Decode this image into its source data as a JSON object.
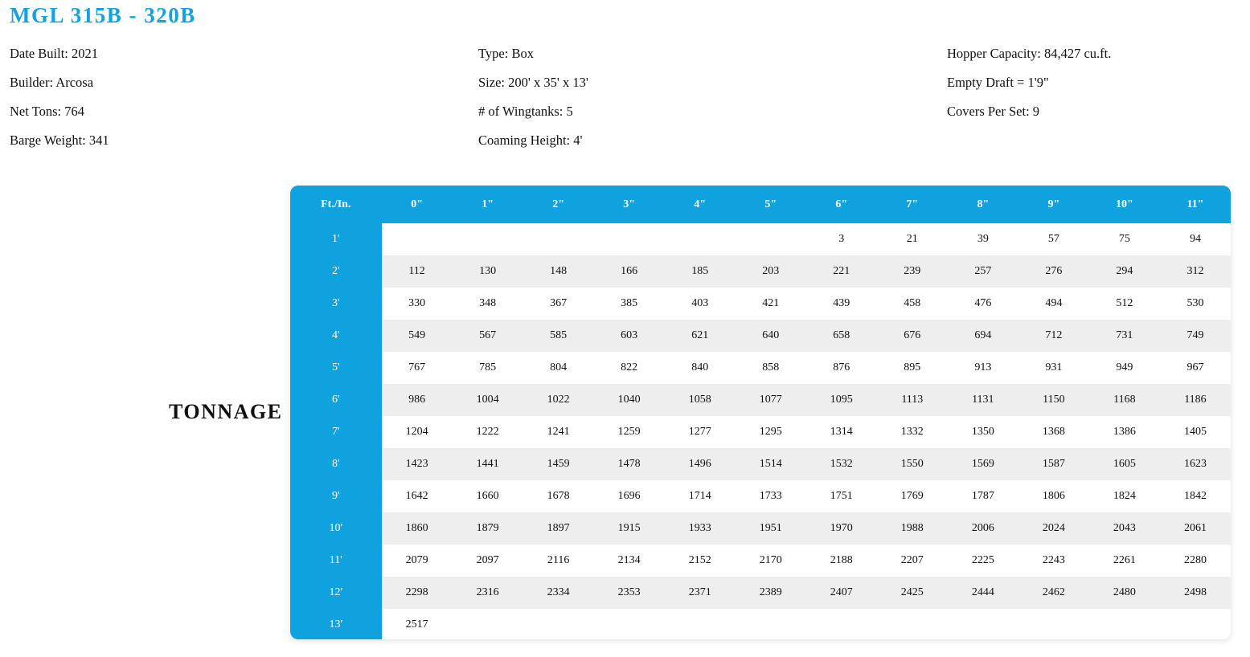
{
  "title": "MGL 315B - 320B",
  "info": {
    "col1": [
      "Date Built: 2021",
      "Builder: Arcosa",
      "Net Tons: 764",
      "Barge Weight: 341"
    ],
    "col2": [
      "Type: Box",
      "Size: 200' x 35' x 13'",
      "# of Wingtanks: 5",
      "Coaming Height: 4'"
    ],
    "col3": [
      "Hopper Capacity: 84,427 cu.ft.",
      "Empty Draft = 1'9\"",
      "Covers Per Set: 9"
    ]
  },
  "tonnage_label": "TONNAGE",
  "table": {
    "headers": [
      "Ft./In.",
      "0\"",
      "1\"",
      "2\"",
      "3\"",
      "4\"",
      "5\"",
      "6\"",
      "7\"",
      "8\"",
      "9\"",
      "10\"",
      "11\""
    ],
    "rows": [
      {
        "ft": "1'",
        "values": [
          "",
          "",
          "",
          "",
          "",
          "",
          "3",
          "21",
          "39",
          "57",
          "75",
          "94"
        ]
      },
      {
        "ft": "2'",
        "values": [
          "112",
          "130",
          "148",
          "166",
          "185",
          "203",
          "221",
          "239",
          "257",
          "276",
          "294",
          "312"
        ]
      },
      {
        "ft": "3'",
        "values": [
          "330",
          "348",
          "367",
          "385",
          "403",
          "421",
          "439",
          "458",
          "476",
          "494",
          "512",
          "530"
        ]
      },
      {
        "ft": "4'",
        "values": [
          "549",
          "567",
          "585",
          "603",
          "621",
          "640",
          "658",
          "676",
          "694",
          "712",
          "731",
          "749"
        ]
      },
      {
        "ft": "5'",
        "values": [
          "767",
          "785",
          "804",
          "822",
          "840",
          "858",
          "876",
          "895",
          "913",
          "931",
          "949",
          "967"
        ]
      },
      {
        "ft": "6'",
        "values": [
          "986",
          "1004",
          "1022",
          "1040",
          "1058",
          "1077",
          "1095",
          "1113",
          "1131",
          "1150",
          "1168",
          "1186"
        ]
      },
      {
        "ft": "7'",
        "values": [
          "1204",
          "1222",
          "1241",
          "1259",
          "1277",
          "1295",
          "1314",
          "1332",
          "1350",
          "1368",
          "1386",
          "1405"
        ]
      },
      {
        "ft": "8'",
        "values": [
          "1423",
          "1441",
          "1459",
          "1478",
          "1496",
          "1514",
          "1532",
          "1550",
          "1569",
          "1587",
          "1605",
          "1623"
        ]
      },
      {
        "ft": "9'",
        "values": [
          "1642",
          "1660",
          "1678",
          "1696",
          "1714",
          "1733",
          "1751",
          "1769",
          "1787",
          "1806",
          "1824",
          "1842"
        ]
      },
      {
        "ft": "10'",
        "values": [
          "1860",
          "1879",
          "1897",
          "1915",
          "1933",
          "1951",
          "1970",
          "1988",
          "2006",
          "2024",
          "2043",
          "2061"
        ]
      },
      {
        "ft": "11'",
        "values": [
          "2079",
          "2097",
          "2116",
          "2134",
          "2152",
          "2170",
          "2188",
          "2207",
          "2225",
          "2243",
          "2261",
          "2280"
        ]
      },
      {
        "ft": "12'",
        "values": [
          "2298",
          "2316",
          "2334",
          "2353",
          "2371",
          "2389",
          "2407",
          "2425",
          "2444",
          "2462",
          "2480",
          "2498"
        ]
      },
      {
        "ft": "13'",
        "values": [
          "2517",
          "",
          "",
          "",
          "",
          "",
          "",
          "",
          "",
          "",
          "",
          ""
        ]
      }
    ]
  }
}
